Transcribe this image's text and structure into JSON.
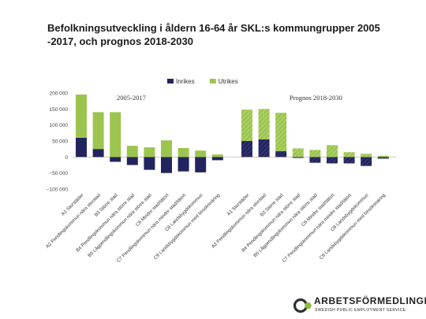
{
  "slide": {
    "title": "Befolkningsutveckling i åldern 16-64 år SKL:s kommungrupper 2005 -2017, och prognos 2018-2030"
  },
  "chart_data": {
    "type": "bar",
    "stacked": true,
    "ylim": [
      -100000,
      200000
    ],
    "yticks": [
      200000,
      150000,
      100000,
      50000,
      0,
      -50000,
      -100000
    ],
    "ytick_labels": [
      "200 000",
      "150 000",
      "100 000",
      "50 000",
      "0",
      "−50 000",
      "−100 000"
    ],
    "grid": false,
    "legend": "top-center",
    "colors": {
      "Inrikes": "#23245e",
      "Utrikes": "#9cc54f"
    },
    "panels": [
      {
        "label": "2005-2017",
        "hatched": false,
        "categories": [
          "A1 Storstäder",
          "A2 Pendlingskommun nära storstad",
          "B3 Större stad",
          "B4 Pendlingskommun nära större stad",
          "B5 Lågpendlingskommun nära större stad",
          "C6 Mindre stad/tätort",
          "C7 Pendlingskommun nära mindre stad/tätort",
          "C8 Landsbygdskommun",
          "C9 Landsbygdskommun med besöksnäring"
        ],
        "series": [
          {
            "name": "Inrikes",
            "values": [
              60000,
              25000,
              -15000,
              -25000,
              -40000,
              -50000,
              -45000,
              -48000,
              -10000
            ]
          },
          {
            "name": "Utrikes",
            "values": [
              135000,
              115000,
              140000,
              35000,
              30000,
              52000,
              28000,
              20000,
              8000
            ]
          }
        ]
      },
      {
        "label": "Prognos 2018-2030",
        "hatched": true,
        "categories": [
          "A1 Storstäder",
          "A2 Pendlingskommun nära storstad",
          "B3 Större stad",
          "B4 Pendlingskommun nära större stad",
          "B5 Lågpendlingskommun nära större stad",
          "C6 Mindre stad/tätort",
          "C7 Pendlingskommun nära mindre stad/tätort",
          "C8 Landsbygdskommun",
          "C9 Landsbygdskommun med besöksnäring"
        ],
        "series": [
          {
            "name": "Inrikes",
            "values": [
              50000,
              55000,
              18000,
              -3000,
              -18000,
              -20000,
              -20000,
              -28000,
              -5000
            ]
          },
          {
            "name": "Utrikes",
            "values": [
              98000,
              95000,
              120000,
              27000,
              22000,
              37000,
              15000,
              10000,
              4000
            ]
          }
        ]
      }
    ]
  },
  "logo": {
    "name": "ARBETSFÖRMEDLINGEN",
    "tagline": "SWEDISH PUBLIC EMPLOYMENT SERVICE"
  }
}
